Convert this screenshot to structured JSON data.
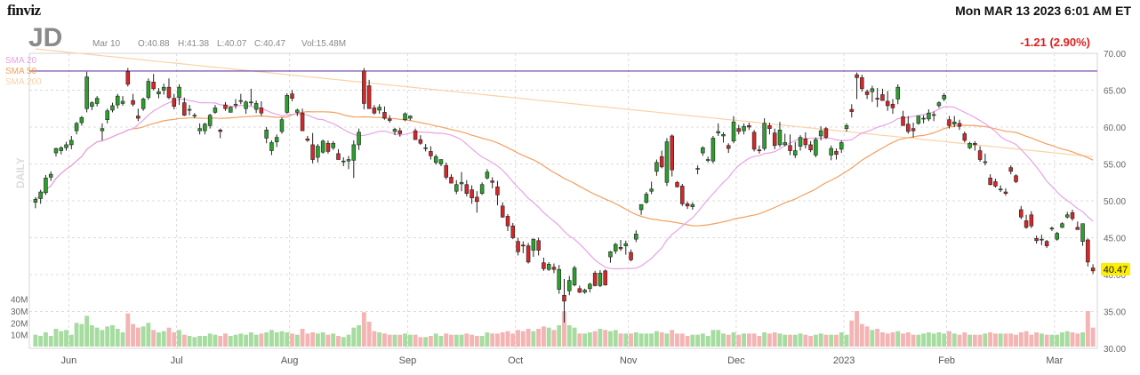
{
  "header": {
    "brand": "finviz",
    "datetime": "Mon MAR 13 2023 6:01 AM ET"
  },
  "stock": {
    "ticker": "JD",
    "date": "Mar 10",
    "open": "O:40.88",
    "high": "H:41.38",
    "low": "L:40.07",
    "close": "C:40.47",
    "volume": "Vol:15.48M",
    "change": "-1.21 (2.90%)",
    "last_price": "40.47",
    "timeframe": "DAILY"
  },
  "colors": {
    "up": "#2ca02c",
    "down": "#d62728",
    "sma20": "#e8a2e6",
    "sma50": "#f3a061",
    "sma200": "#f8d3a6",
    "resistance": "#6a3ca8",
    "vol_up": "#a6dca0",
    "vol_down": "#f4b4b4",
    "change": "#e0201e",
    "price_tag": "#ffee00"
  },
  "chart_data": {
    "type": "candlestick",
    "y_axis": {
      "ylim": [
        30,
        70
      ],
      "ticks": [
        30,
        35,
        40,
        45,
        50,
        55,
        60,
        65,
        70
      ]
    },
    "volume_axis": {
      "ticks": [
        "10M",
        "20M",
        "30M",
        "40M"
      ],
      "max_millions": 45
    },
    "x_axis_labels": [
      "Jun",
      "Jul",
      "Aug",
      "Sep",
      "Oct",
      "Nov",
      "Dec",
      "2023",
      "Feb",
      "Mar"
    ],
    "legend": [
      "SMA 20",
      "SMA 50",
      "SMA 200"
    ],
    "resistance_level": 67.6,
    "candles": [
      [
        49.8,
        50.5,
        49,
        50.2,
        10
      ],
      [
        50.3,
        51.5,
        49.6,
        51.2,
        9
      ],
      [
        51.1,
        53.5,
        50.8,
        53.1,
        12
      ],
      [
        53.2,
        54,
        52.7,
        53.6,
        9
      ],
      [
        56.5,
        57.2,
        56,
        57.1,
        15
      ],
      [
        56.8,
        57.4,
        56.3,
        57.2,
        13
      ],
      [
        57.2,
        58,
        56.8,
        57.6,
        14
      ],
      [
        57.6,
        58.8,
        57,
        58.2,
        10
      ],
      [
        59.5,
        60.7,
        59,
        60.5,
        20
      ],
      [
        60.6,
        61.5,
        60.2,
        61.3,
        19
      ],
      [
        62.5,
        67.5,
        62,
        66.8,
        26
      ],
      [
        62.8,
        63.5,
        62.3,
        63.3,
        18
      ],
      [
        63.2,
        64.2,
        62.8,
        63.9,
        16
      ],
      [
        59.5,
        60.5,
        58.2,
        59.8,
        14
      ],
      [
        61,
        62.5,
        60.5,
        62.2,
        17
      ],
      [
        62.3,
        63.3,
        62,
        62.9,
        18
      ],
      [
        63,
        64.5,
        62.5,
        64.2,
        15
      ],
      [
        63.2,
        64.2,
        62.9,
        63.5,
        12
      ],
      [
        67.5,
        68,
        65.5,
        65.8,
        28
      ],
      [
        63.6,
        64.5,
        62.8,
        63.1,
        19
      ],
      [
        61.5,
        62.5,
        60.8,
        61.2,
        16
      ],
      [
        62.5,
        64,
        62.2,
        63.8,
        17
      ],
      [
        64,
        66.6,
        63.7,
        66.2,
        20
      ],
      [
        66.1,
        67.2,
        65,
        65.2,
        14
      ],
      [
        64.5,
        65.3,
        63.9,
        64.8,
        12
      ],
      [
        65,
        65.9,
        64.4,
        65.4,
        13
      ],
      [
        65.4,
        66.6,
        63.8,
        64,
        16
      ],
      [
        63.9,
        64.5,
        62.4,
        62.8,
        12
      ],
      [
        64,
        65.8,
        63,
        65.4,
        14
      ],
      [
        63.3,
        64,
        61.5,
        61.6,
        10
      ],
      [
        62.4,
        63,
        61.6,
        62.4,
        9
      ],
      [
        61.5,
        61.9,
        61.2,
        61.6,
        8
      ],
      [
        59.5,
        60.5,
        59,
        59.8,
        9
      ],
      [
        59.5,
        60.6,
        59,
        60.4,
        9
      ],
      [
        60.2,
        61.8,
        59.8,
        61.6,
        11
      ],
      [
        62,
        63,
        61.8,
        62.6,
        10
      ],
      [
        59.6,
        59.8,
        58.5,
        59.4,
        9
      ],
      [
        63,
        63.4,
        62.2,
        62.5,
        11
      ],
      [
        62,
        62.8,
        62.1,
        62.7,
        9
      ],
      [
        63.1,
        63.8,
        62.5,
        63.1,
        10
      ],
      [
        63.5,
        64.5,
        63.1,
        63.6,
        11
      ],
      [
        62.5,
        63.6,
        61.8,
        63.4,
        10
      ],
      [
        63.4,
        65.2,
        62.9,
        63.4,
        12
      ],
      [
        62.4,
        63.6,
        61.9,
        63.2,
        10
      ],
      [
        62.6,
        63.5,
        61.5,
        61.9,
        11
      ],
      [
        58.5,
        60,
        57.8,
        59.6,
        12
      ],
      [
        56.8,
        58.2,
        56.2,
        57.9,
        14
      ],
      [
        58,
        59,
        57.3,
        58.6,
        12
      ],
      [
        59.4,
        61.3,
        59.1,
        61,
        13
      ],
      [
        62,
        64.6,
        61.8,
        64.3,
        12
      ],
      [
        64.5,
        65,
        63.5,
        63.9,
        11
      ],
      [
        62,
        62.5,
        61.5,
        62.3,
        10
      ],
      [
        61.9,
        62.5,
        59.8,
        59.5,
        15
      ],
      [
        58.4,
        58.8,
        58,
        58.2,
        11
      ],
      [
        57.6,
        59.2,
        55.1,
        55.6,
        12
      ],
      [
        55.9,
        57.7,
        55.2,
        57.4,
        11
      ],
      [
        56.6,
        58.3,
        56.4,
        58.1,
        12
      ],
      [
        57.8,
        58.2,
        56.4,
        56.7,
        10
      ],
      [
        57.2,
        58.1,
        56.9,
        57.8,
        11
      ],
      [
        56.4,
        57,
        55.7,
        55.6,
        9
      ],
      [
        55.4,
        55.9,
        54.7,
        55.4,
        8
      ],
      [
        55.4,
        56.1,
        54.3,
        55.6,
        10
      ],
      [
        55.5,
        58.2,
        53.1,
        57.6,
        16
      ],
      [
        57.6,
        59.8,
        56.9,
        59.3,
        18
      ],
      [
        67.6,
        68,
        62.4,
        63.2,
        29
      ],
      [
        65.6,
        66.4,
        62.8,
        62.5,
        21
      ],
      [
        62.6,
        63,
        61.7,
        61.9,
        13
      ],
      [
        62.3,
        63.1,
        61.8,
        62.7,
        12
      ],
      [
        62,
        62.8,
        61,
        61.2,
        11
      ],
      [
        61.1,
        61.6,
        60.6,
        60.9,
        10
      ],
      [
        59.4,
        59.9,
        58.9,
        59.7,
        10
      ],
      [
        59.5,
        59.9,
        58.7,
        59.1,
        10
      ],
      [
        61,
        62,
        60.8,
        61.8,
        11
      ],
      [
        61.2,
        61.6,
        60.9,
        61.5,
        10
      ],
      [
        59.5,
        59.8,
        58.3,
        58.3,
        10
      ],
      [
        58.3,
        58.9,
        57.6,
        57.8,
        8
      ],
      [
        57.2,
        57.7,
        56.7,
        57.2,
        8
      ],
      [
        56.7,
        57.4,
        55.6,
        56.1,
        9
      ],
      [
        55.2,
        56.3,
        54.9,
        56
      ],
      [
        55,
        55.6,
        54.7,
        55.6,
        9
      ],
      [
        54.8,
        55.2,
        52.9,
        53.2,
        11
      ],
      [
        53.2,
        53.6,
        52.4,
        52.4,
        10
      ],
      [
        51.3,
        52.8,
        50.9,
        52.2,
        10
      ],
      [
        52.3,
        53.9,
        51.3,
        52.5,
        10
      ],
      [
        52.2,
        52.8,
        50.6,
        51
      ],
      [
        51.5,
        52.1,
        49.6,
        50.4,
        10
      ],
      [
        50.5,
        51.3,
        48.4,
        49.9,
        9
      ],
      [
        51,
        52.5,
        50.8,
        52.2,
        9
      ],
      [
        53.1,
        54.3,
        52.9,
        53.9,
        12
      ],
      [
        52.7,
        53.2,
        51.7,
        52.5,
        11
      ],
      [
        51.9,
        52.7,
        49.4,
        50.8,
        11
      ],
      [
        49.3,
        49.8,
        47.7,
        47.8,
        12
      ],
      [
        47.9,
        48.2,
        45.9,
        46.6,
        13
      ],
      [
        46.6,
        47,
        44.8,
        45
      ],
      [
        44.5,
        45,
        42.6,
        43.1,
        14
      ],
      [
        44,
        44.5,
        42.9,
        43.9,
        13
      ],
      [
        43.9,
        44.3,
        41.5,
        41.7,
        15
      ],
      [
        43.3,
        44.9,
        42.4,
        44.8,
        13
      ],
      [
        44.6,
        45,
        42.6,
        43.3,
        15
      ],
      [
        41.6,
        42.3,
        40.5,
        40.8,
        17
      ],
      [
        40.7,
        41.7,
        40.5,
        41.4,
        16
      ],
      [
        41,
        41.5,
        40.2,
        40.7,
        14
      ],
      [
        38,
        41.3,
        37.4,
        40.7,
        18
      ],
      [
        37.2,
        39.4,
        33.5,
        36.4,
        30
      ],
      [
        37.8,
        39.8,
        37.2,
        39.2,
        18
      ],
      [
        38.6,
        41.2,
        38.4,
        40.9,
        16
      ],
      [
        38.1,
        38.5,
        37.5,
        37.6,
        11
      ],
      [
        37.6,
        38.1,
        37.4,
        37.9,
        11
      ],
      [
        38.1,
        38.9,
        37.6,
        38.7,
        12
      ],
      [
        40.2,
        40.5,
        38.4,
        38.5,
        13
      ],
      [
        38.5,
        40.6,
        38.3,
        40.2,
        15
      ],
      [
        40.5,
        40.7,
        38.5,
        38.6,
        14
      ],
      [
        42.4,
        43.2,
        41.6,
        43.1,
        13
      ],
      [
        43.2,
        44.3,
        42.8,
        44.1,
        14
      ],
      [
        43.7,
        44.7,
        43.2,
        43.5,
        11
      ],
      [
        43.9,
        44.6,
        42.7,
        44.2,
        11
      ],
      [
        43,
        43.4,
        41.8,
        42
      ],
      [
        44.8,
        46,
        44.4,
        45.5,
        12
      ],
      [
        48.8,
        49.4,
        48.1,
        49.5,
        11
      ],
      [
        49.8,
        51.2,
        49.6,
        50.9,
        11
      ],
      [
        51.3,
        52.6,
        50.9,
        51.6,
        11
      ],
      [
        54,
        55.6,
        53.4,
        55.2,
        13
      ],
      [
        56,
        56.8,
        54.4,
        54.6,
        12
      ],
      [
        52.5,
        58.5,
        52,
        58
      ],
      [
        58.8,
        59,
        53.3,
        54.2,
        14
      ],
      [
        52.5,
        52.7,
        51.8,
        51.9,
        11
      ],
      [
        52,
        52.3,
        49.3,
        49.6,
        11
      ],
      [
        49.6,
        49.9,
        48.9,
        49.3,
        9
      ],
      [
        49.2,
        49.8,
        48.8,
        49.5,
        10
      ],
      [
        54.4,
        54.8,
        53.6,
        54.4,
        10
      ],
      [
        56.5,
        57.4,
        56.1,
        57.2,
        11
      ],
      [
        55.6,
        56,
        55.2,
        55.6,
        9
      ],
      [
        55.4,
        58.8,
        55.1,
        58.5,
        14
      ],
      [
        59.2,
        60.5,
        58.8,
        59.4,
        14
      ],
      [
        58.8,
        59.3,
        57.9,
        59
      ],
      [
        57.5,
        57.8,
        56.5,
        57.1,
        10
      ],
      [
        58.1,
        61.5,
        57.8,
        60.7,
        12
      ],
      [
        59.8,
        60.3,
        59,
        59.4,
        10
      ],
      [
        59.5,
        60.5,
        59,
        60.1,
        11
      ],
      [
        60.2,
        60.6,
        59.6,
        60
      ],
      [
        59.3,
        59.6,
        56.7,
        57
      ],
      [
        56.9,
        57.5,
        56.4,
        56.8,
        9
      ],
      [
        57.1,
        61.2,
        56.8,
        60.5,
        12
      ],
      [
        60.2,
        60.6,
        59,
        59.8,
        11
      ],
      [
        59.2,
        59.8,
        57,
        57.5,
        12
      ],
      [
        57.6,
        60.7,
        57.3,
        59.6,
        11
      ],
      [
        57.6,
        59.1,
        57.4,
        57.9,
        10
      ],
      [
        57.5,
        59,
        56.2,
        56.8,
        10
      ],
      [
        56.2,
        58,
        55.8,
        56.8,
        10
      ],
      [
        57.4,
        58.9,
        56.8,
        58.6,
        11
      ],
      [
        58.4,
        59.3,
        57.1,
        57.6,
        10
      ],
      [
        57.6,
        58.1,
        56.6,
        56.9,
        9
      ],
      [
        56.2,
        58.6,
        55.9,
        58.3,
        10
      ],
      [
        58.8,
        60.1,
        58.2,
        59.5,
        11
      ],
      [
        59.8,
        60,
        58.4,
        58.6,
        10
      ],
      [
        56.2,
        57.5,
        55.5,
        57.1,
        10
      ],
      [
        56.7,
        57.1,
        55.6,
        56.3,
        10
      ],
      [
        57,
        58.2,
        56.5,
        57.9,
        12
      ],
      [
        59.8,
        60.5,
        59.4,
        60.2,
        10
      ],
      [
        62.4,
        63.1,
        61.3,
        62.1,
        22
      ],
      [
        67.1,
        67.4,
        63.8,
        66.7,
        30
      ],
      [
        66.7,
        67.1,
        64.8,
        65.2,
        19
      ],
      [
        64.8,
        65.1,
        63.8,
        64.4,
        17
      ],
      [
        64.8,
        65.6,
        63.4,
        65.2,
        14
      ],
      [
        63.9,
        65.3,
        62.7,
        63.8,
        15
      ],
      [
        64.4,
        65.2,
        63.6,
        63.6,
        12
      ],
      [
        63.5,
        64.9,
        62.2,
        62.9,
        11
      ],
      [
        63.1,
        63.8,
        61.8,
        62.6,
        12
      ],
      [
        63.8,
        65.8,
        63.1,
        65.4,
        13
      ],
      [
        61.4,
        62.2,
        60.3,
        60.2,
        11
      ],
      [
        60.4,
        61.5,
        59.1,
        59.4,
        12
      ],
      [
        59.8,
        60.6,
        58.6,
        59.5,
        10
      ],
      [
        60.5,
        61.5,
        60.3,
        61.5,
        10
      ],
      [
        61.1,
        61.6,
        60.5,
        61.2,
        11
      ],
      [
        61.1,
        62.4,
        60.8,
        61.9,
        12
      ],
      [
        61.6,
        62.1,
        60.8,
        61.7,
        11
      ],
      [
        62.9,
        63.5,
        62.6,
        63.3,
        12
      ],
      [
        63.8,
        64.6,
        63.5,
        64.3,
        11
      ],
      [
        61,
        61.5,
        59.8,
        60.2,
        13
      ],
      [
        60.4,
        61.5,
        60,
        60.7,
        11
      ],
      [
        60.5,
        61,
        59.6,
        60.1,
        10
      ],
      [
        59.1,
        59.4,
        57.9,
        58.2,
        12
      ],
      [
        57.2,
        58,
        57,
        57.8,
        10
      ],
      [
        57.8,
        58.1,
        56.8,
        57.6,
        10
      ],
      [
        56.8,
        57.4,
        55.3,
        55.6,
        10
      ],
      [
        55.2,
        56.4,
        54.8,
        55.3,
        11
      ],
      [
        53.1,
        53.6,
        52.1,
        52.2,
        12
      ],
      [
        52.6,
        53,
        51.8,
        52
      ],
      [
        51.6,
        52.1,
        51.2,
        51.6,
        11
      ],
      [
        51.2,
        51.7,
        50.7,
        51
      ],
      [
        54.5,
        54.8,
        53.6,
        54
      ],
      [
        53.4,
        53.6,
        52.4,
        52.6,
        10
      ],
      [
        48.8,
        49.3,
        47.5,
        47.8,
        12
      ],
      [
        47.3,
        48.1,
        46.2,
        46.4,
        13
      ],
      [
        48.1,
        48.6,
        46.3,
        46.6,
        10
      ],
      [
        44.9,
        45.3,
        44.2,
        44.6,
        12
      ],
      [
        44.7,
        45.4,
        44,
        44.8,
        11
      ],
      [
        44.5,
        44.7,
        43.6,
        43.9,
        10
      ],
      [
        46.2,
        46.5,
        45.9,
        46.3,
        10
      ],
      [
        44.8,
        45.8,
        44.6,
        45.6,
        10
      ],
      [
        46.4,
        47.1,
        46.3,
        46.9,
        12
      ],
      [
        47.8,
        48.5,
        47.6,
        48.1,
        13
      ],
      [
        48.4,
        48.8,
        47.3,
        47.6,
        12
      ],
      [
        46.4,
        47.2,
        46.2,
        46.1,
        11
      ],
      [
        44.5,
        46.8,
        43.9,
        46.9,
        12
      ],
      [
        44.7,
        44.9,
        41.1,
        41.7,
        30
      ],
      [
        40.9,
        41.4,
        40.1,
        40.5,
        16
      ]
    ]
  }
}
